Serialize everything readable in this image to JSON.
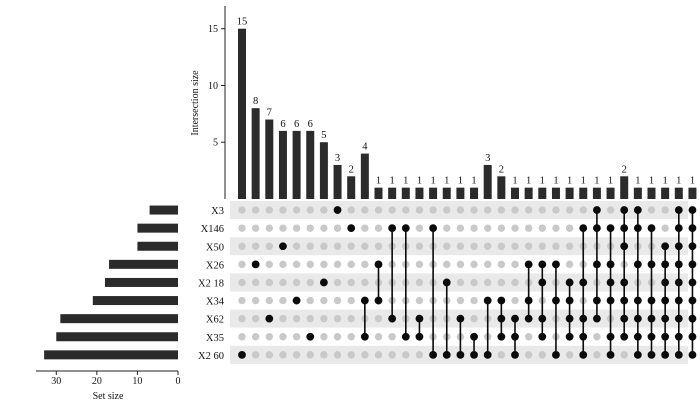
{
  "chart_data": {
    "type": "upset",
    "ylabel": "Intersection size",
    "xlabel_sets": "Set size",
    "ylim": [
      0,
      17
    ],
    "set_size_xlim": [
      0,
      35
    ],
    "intersection_yticks": [
      5,
      10,
      15
    ],
    "set_size_xticks": [
      30,
      20,
      10,
      0
    ],
    "sets": [
      {
        "name": "X3",
        "size": 7
      },
      {
        "name": "X146",
        "size": 10
      },
      {
        "name": "X50",
        "size": 10
      },
      {
        "name": "X26",
        "size": 17
      },
      {
        "name": "X2 18",
        "size": 18
      },
      {
        "name": "X34",
        "size": 21
      },
      {
        "name": "X62",
        "size": 29
      },
      {
        "name": "X35",
        "size": 30
      },
      {
        "name": "X2 60",
        "size": 33
      }
    ],
    "intersections": [
      {
        "size": 15,
        "sets": [
          "X2 60"
        ]
      },
      {
        "size": 8,
        "sets": [
          "X26"
        ]
      },
      {
        "size": 7,
        "sets": [
          "X62"
        ]
      },
      {
        "size": 6,
        "sets": [
          "X50"
        ]
      },
      {
        "size": 6,
        "sets": [
          "X34"
        ]
      },
      {
        "size": 6,
        "sets": [
          "X35"
        ]
      },
      {
        "size": 5,
        "sets": [
          "X2 18"
        ]
      },
      {
        "size": 3,
        "sets": [
          "X3"
        ]
      },
      {
        "size": 2,
        "sets": [
          "X146"
        ]
      },
      {
        "size": 4,
        "sets": [
          "X34",
          "X35"
        ]
      },
      {
        "size": 1,
        "sets": [
          "X26",
          "X34"
        ]
      },
      {
        "size": 1,
        "sets": [
          "X146",
          "X62"
        ]
      },
      {
        "size": 1,
        "sets": [
          "X146",
          "X35"
        ]
      },
      {
        "size": 1,
        "sets": [
          "X62",
          "X35"
        ]
      },
      {
        "size": 1,
        "sets": [
          "X146",
          "X2 60"
        ]
      },
      {
        "size": 1,
        "sets": [
          "X2 18",
          "X2 60"
        ]
      },
      {
        "size": 1,
        "sets": [
          "X62",
          "X2 60"
        ]
      },
      {
        "size": 1,
        "sets": [
          "X35",
          "X2 60"
        ]
      },
      {
        "size": 3,
        "sets": [
          "X34",
          "X2 60"
        ]
      },
      {
        "size": 2,
        "sets": [
          "X34",
          "X62",
          "X35"
        ]
      },
      {
        "size": 1,
        "sets": [
          "X62",
          "X35",
          "X2 60"
        ]
      },
      {
        "size": 1,
        "sets": [
          "X26",
          "X34",
          "X62"
        ]
      },
      {
        "size": 1,
        "sets": [
          "X26",
          "X2 18",
          "X62",
          "X35"
        ]
      },
      {
        "size": 1,
        "sets": [
          "X26",
          "X34",
          "X2 60"
        ]
      },
      {
        "size": 1,
        "sets": [
          "X2 18",
          "X34",
          "X62",
          "X35"
        ]
      },
      {
        "size": 1,
        "sets": [
          "X146",
          "X2 18",
          "X62",
          "X35",
          "X2 60"
        ]
      },
      {
        "size": 1,
        "sets": [
          "X3",
          "X146",
          "X26",
          "X34",
          "X62"
        ]
      },
      {
        "size": 1,
        "sets": [
          "X146",
          "X26",
          "X2 18",
          "X34",
          "X35",
          "X2 60"
        ]
      },
      {
        "size": 2,
        "sets": [
          "X3",
          "X146",
          "X50",
          "X2 18",
          "X34",
          "X62",
          "X35"
        ]
      },
      {
        "size": 1,
        "sets": [
          "X3",
          "X146",
          "X26",
          "X34",
          "X62",
          "X35",
          "X2 60"
        ]
      },
      {
        "size": 1,
        "sets": [
          "X146",
          "X26",
          "X34",
          "X62",
          "X35",
          "X2 60"
        ]
      },
      {
        "size": 1,
        "sets": [
          "X50",
          "X26",
          "X2 18",
          "X34",
          "X62",
          "X35",
          "X2 60"
        ]
      },
      {
        "size": 1,
        "sets": [
          "X3",
          "X146",
          "X50",
          "X26",
          "X2 18",
          "X34",
          "X62",
          "X35",
          "X2 60"
        ]
      },
      {
        "size": 1,
        "sets": [
          "X3",
          "X146",
          "X50",
          "X26",
          "X2 18",
          "X34",
          "X62",
          "X35",
          "X2 60"
        ]
      }
    ],
    "colors": {
      "bar": "#2b2b2b",
      "dot_on": "#0b0b0b",
      "dot_off": "#c9c9c9",
      "stripe": "#e9e9e9"
    }
  }
}
